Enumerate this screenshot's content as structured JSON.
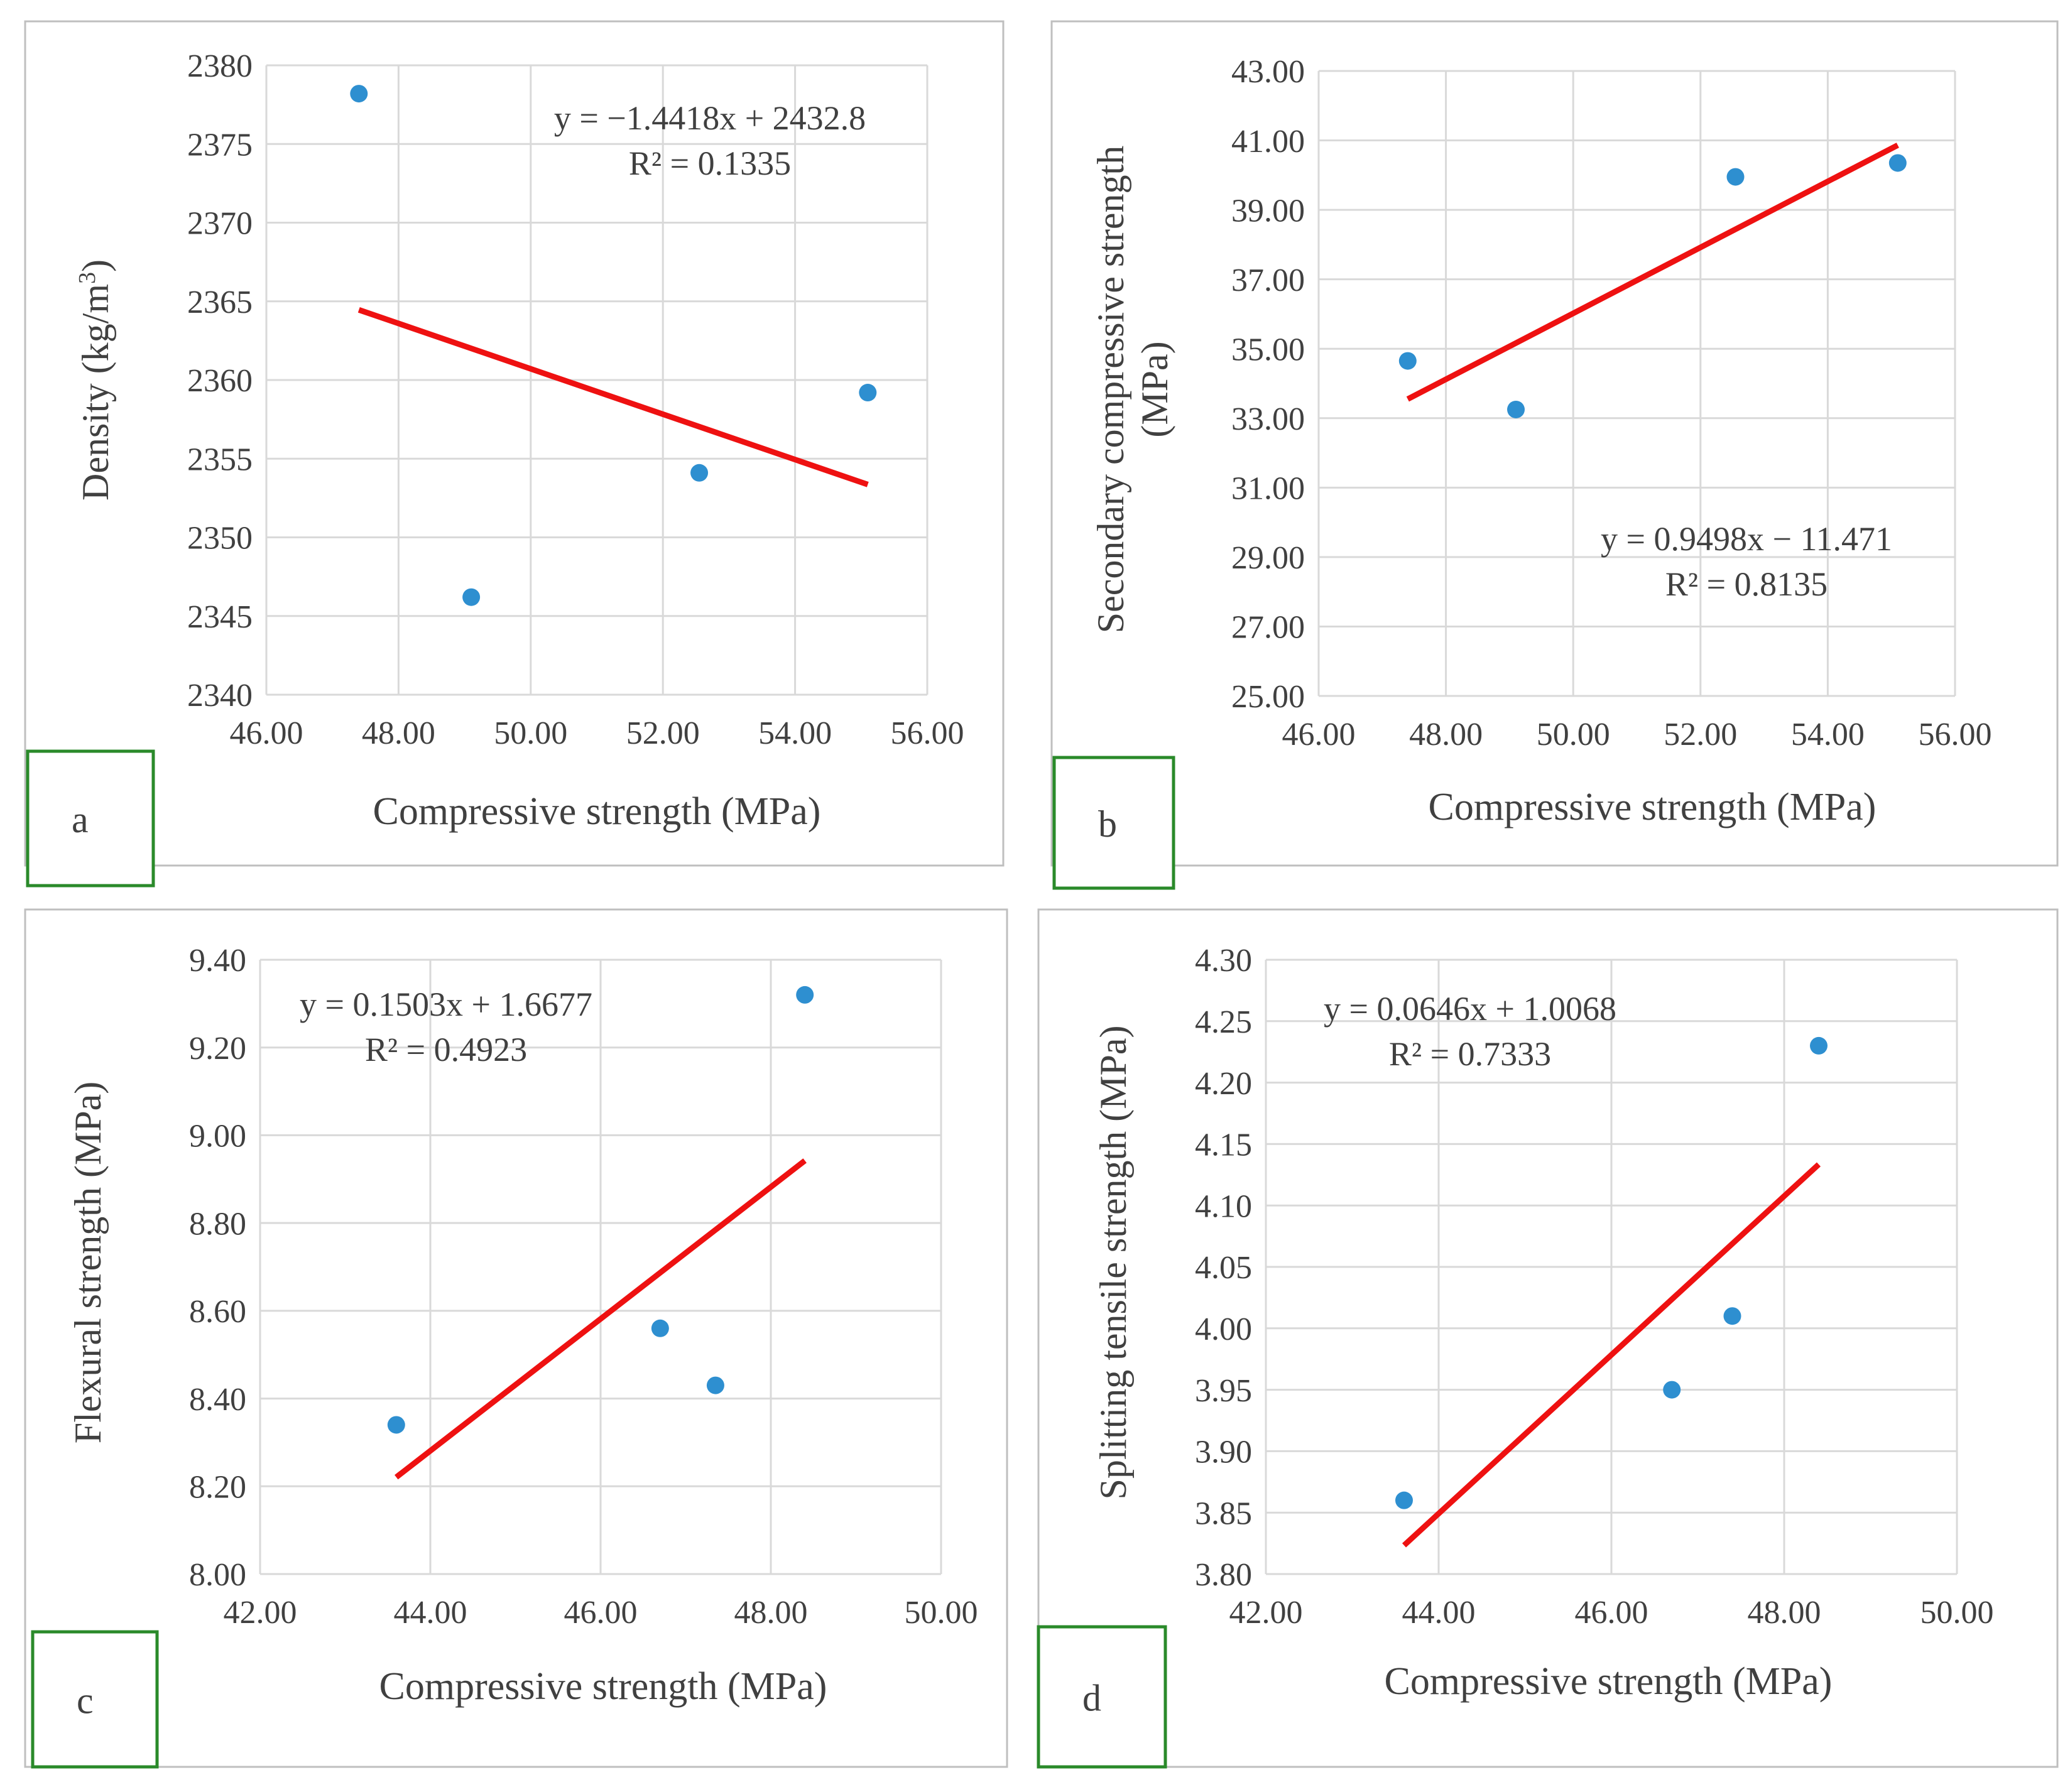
{
  "colors": {
    "point": "#2e8fd0",
    "trendline": "#ee1111",
    "grid": "#d9d9d9",
    "frame": "#bfbfbf",
    "label_box": "#2a8a2a",
    "text": "#404040"
  },
  "chart_data": [
    {
      "type": "scatter",
      "panel_label": "a",
      "title": "",
      "xlabel": "Compressive strength (MPa)",
      "ylabel_lines": [
        "Density (kg/m",
        "3",
        ")"
      ],
      "xlim": [
        46,
        56
      ],
      "ylim": [
        2340,
        2380
      ],
      "x_ticks": [
        46,
        48,
        50,
        52,
        54,
        56
      ],
      "y_ticks": [
        2340,
        2345,
        2350,
        2355,
        2360,
        2365,
        2370,
        2375,
        2380
      ],
      "x_tick_labels": [
        "46.00",
        "48.00",
        "50.00",
        "52.00",
        "54.00",
        "56.00"
      ],
      "y_tick_labels": [
        "2340",
        "2345",
        "2350",
        "2355",
        "2360",
        "2365",
        "2370",
        "2375",
        "2380"
      ],
      "grid": true,
      "points": [
        {
          "x": 47.4,
          "y": 2378.2
        },
        {
          "x": 49.1,
          "y": 2346.2
        },
        {
          "x": 52.55,
          "y": 2354.1
        },
        {
          "x": 55.1,
          "y": 2359.2
        }
      ],
      "trendline": {
        "slope": -1.4418,
        "intercept": 2432.8,
        "x_start": 47.4,
        "x_end": 55.1
      },
      "equation": "y = −1.4418x + 2432.8",
      "r_squared": "R² = 0.1335"
    },
    {
      "type": "scatter",
      "panel_label": "b",
      "title": "",
      "xlabel": "Compressive strength (MPa)",
      "ylabel_lines": [
        "Secondary compressive strength",
        "(MPa)"
      ],
      "xlim": [
        46,
        56
      ],
      "ylim": [
        25,
        43
      ],
      "x_ticks": [
        46,
        48,
        50,
        52,
        54,
        56
      ],
      "y_ticks": [
        25,
        27,
        29,
        31,
        33,
        35,
        37,
        39,
        41,
        43
      ],
      "x_tick_labels": [
        "46.00",
        "48.00",
        "50.00",
        "52.00",
        "54.00",
        "56.00"
      ],
      "y_tick_labels": [
        "25.00",
        "27.00",
        "29.00",
        "31.00",
        "33.00",
        "35.00",
        "37.00",
        "39.00",
        "41.00",
        "43.00"
      ],
      "grid": true,
      "points": [
        {
          "x": 47.4,
          "y": 34.65
        },
        {
          "x": 49.1,
          "y": 33.25
        },
        {
          "x": 52.55,
          "y": 39.95
        },
        {
          "x": 55.1,
          "y": 40.35
        }
      ],
      "trendline": {
        "slope": 0.9498,
        "intercept": -11.471,
        "x_start": 47.4,
        "x_end": 55.1
      },
      "equation": "y = 0.9498x − 11.471",
      "r_squared": "R² = 0.8135"
    },
    {
      "type": "scatter",
      "panel_label": "c",
      "title": "",
      "xlabel": "Compressive strength (MPa)",
      "ylabel_lines": [
        "Flexural strength (MPa)"
      ],
      "xlim": [
        42,
        50
      ],
      "ylim": [
        8.0,
        9.4
      ],
      "x_ticks": [
        42,
        44,
        46,
        48,
        50
      ],
      "y_ticks": [
        8.0,
        8.2,
        8.4,
        8.6,
        8.8,
        9.0,
        9.2,
        9.4
      ],
      "x_tick_labels": [
        "42.00",
        "44.00",
        "46.00",
        "48.00",
        "50.00"
      ],
      "y_tick_labels": [
        "8.00",
        "8.20",
        "8.40",
        "8.60",
        "8.80",
        "9.00",
        "9.20",
        "9.40"
      ],
      "grid": true,
      "points": [
        {
          "x": 43.6,
          "y": 8.34
        },
        {
          "x": 46.7,
          "y": 8.56
        },
        {
          "x": 47.35,
          "y": 8.43
        },
        {
          "x": 48.4,
          "y": 9.32
        }
      ],
      "trendline": {
        "slope": 0.1503,
        "intercept": 1.6677,
        "x_start": 43.6,
        "x_end": 48.4
      },
      "equation": "y = 0.1503x + 1.6677",
      "r_squared": "R² = 0.4923"
    },
    {
      "type": "scatter",
      "panel_label": "d",
      "title": "",
      "xlabel": "Compressive strength (MPa)",
      "ylabel_lines": [
        "Splitting tensile strength (MPa)"
      ],
      "xlim": [
        42,
        50
      ],
      "ylim": [
        3.8,
        4.3
      ],
      "x_ticks": [
        42,
        44,
        46,
        48,
        50
      ],
      "y_ticks": [
        3.8,
        3.85,
        3.9,
        3.95,
        4.0,
        4.05,
        4.1,
        4.15,
        4.2,
        4.25,
        4.3
      ],
      "x_tick_labels": [
        "42.00",
        "44.00",
        "46.00",
        "48.00",
        "50.00"
      ],
      "y_tick_labels": [
        "3.80",
        "3.85",
        "3.90",
        "3.95",
        "4.00",
        "4.05",
        "4.10",
        "4.15",
        "4.20",
        "4.25",
        "4.30"
      ],
      "grid": true,
      "points": [
        {
          "x": 43.6,
          "y": 3.86
        },
        {
          "x": 46.7,
          "y": 3.95
        },
        {
          "x": 47.4,
          "y": 4.01
        },
        {
          "x": 48.4,
          "y": 4.23
        }
      ],
      "trendline": {
        "slope": 0.0646,
        "intercept": 1.0068,
        "x_start": 43.6,
        "x_end": 48.4
      },
      "equation": "y = 0.0646x + 1.0068",
      "r_squared": "R² = 0.7333"
    }
  ]
}
